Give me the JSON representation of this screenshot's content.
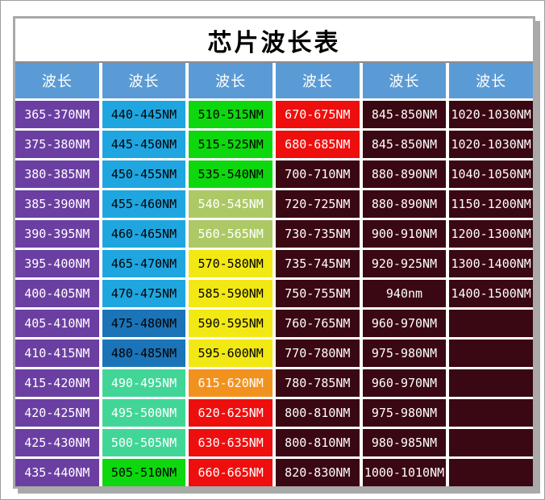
{
  "title": "芯片波长表",
  "header": {
    "labels": [
      "波长",
      "波长",
      "波长",
      "波长",
      "波长",
      "波长"
    ],
    "bg": "#5B9BD5",
    "fg": "#FFFFFF"
  },
  "palette": {
    "uv_purple": {
      "bg": "#6B3FA2",
      "fg": "#FFFFFF"
    },
    "cyan_blue": {
      "bg": "#1FA6E0",
      "fg": "#000000"
    },
    "medium_blue": {
      "bg": "#1B74B8",
      "fg": "#000000"
    },
    "seafoam": {
      "bg": "#41D697",
      "fg": "#FFFFFF"
    },
    "bright_green": {
      "bg": "#0DD80D",
      "fg": "#000000"
    },
    "yellow_green": {
      "bg": "#ADC965",
      "fg": "#FFFFFF"
    },
    "yellow": {
      "bg": "#F2E813",
      "fg": "#000000"
    },
    "orange": {
      "bg": "#F2921E",
      "fg": "#FFFFFF"
    },
    "red": {
      "bg": "#EE0E0E",
      "fg": "#FFFFFF"
    },
    "dark_maroon": {
      "bg": "#3A0812",
      "fg": "#FFFFFF"
    }
  },
  "table": {
    "rows": [
      {
        "cells": [
          {
            "text": "365-370NM",
            "color": "uv_purple"
          },
          {
            "text": "440-445NM",
            "color": "cyan_blue"
          },
          {
            "text": "510-515NM",
            "color": "bright_green"
          },
          {
            "text": "670-675NM",
            "color": "red"
          },
          {
            "text": "845-850NM",
            "color": "dark_maroon"
          },
          {
            "text": "1020-1030NM",
            "color": "dark_maroon"
          }
        ]
      },
      {
        "cells": [
          {
            "text": "375-380NM",
            "color": "uv_purple"
          },
          {
            "text": "445-450NM",
            "color": "cyan_blue"
          },
          {
            "text": "515-525NM",
            "color": "bright_green"
          },
          {
            "text": "680-685NM",
            "color": "red"
          },
          {
            "text": "845-850NM",
            "color": "dark_maroon"
          },
          {
            "text": "1020-1030NM",
            "color": "dark_maroon"
          }
        ]
      },
      {
        "cells": [
          {
            "text": "380-385NM",
            "color": "uv_purple"
          },
          {
            "text": "450-455NM",
            "color": "cyan_blue"
          },
          {
            "text": "535-540NM",
            "color": "bright_green"
          },
          {
            "text": "700-710NM",
            "color": "dark_maroon"
          },
          {
            "text": "880-890NM",
            "color": "dark_maroon"
          },
          {
            "text": "1040-1050NM",
            "color": "dark_maroon"
          }
        ]
      },
      {
        "cells": [
          {
            "text": "385-390NM",
            "color": "uv_purple"
          },
          {
            "text": "455-460NM",
            "color": "cyan_blue"
          },
          {
            "text": "540-545NM",
            "color": "yellow_green"
          },
          {
            "text": "720-725NM",
            "color": "dark_maroon"
          },
          {
            "text": "880-890NM",
            "color": "dark_maroon"
          },
          {
            "text": "1150-1200NM",
            "color": "dark_maroon"
          }
        ]
      },
      {
        "cells": [
          {
            "text": "390-395NM",
            "color": "uv_purple"
          },
          {
            "text": "460-465NM",
            "color": "cyan_blue"
          },
          {
            "text": "560-565NM",
            "color": "yellow_green"
          },
          {
            "text": "730-735NM",
            "color": "dark_maroon"
          },
          {
            "text": "900-910NM",
            "color": "dark_maroon"
          },
          {
            "text": "1200-1300NM",
            "color": "dark_maroon"
          }
        ]
      },
      {
        "cells": [
          {
            "text": "395-400NM",
            "color": "uv_purple"
          },
          {
            "text": "465-470NM",
            "color": "cyan_blue"
          },
          {
            "text": "570-580NM",
            "color": "yellow"
          },
          {
            "text": "735-745NM",
            "color": "dark_maroon"
          },
          {
            "text": "920-925NM",
            "color": "dark_maroon"
          },
          {
            "text": "1300-1400NM",
            "color": "dark_maroon"
          }
        ]
      },
      {
        "cells": [
          {
            "text": "400-405NM",
            "color": "uv_purple"
          },
          {
            "text": "470-475NM",
            "color": "cyan_blue"
          },
          {
            "text": "585-590NM",
            "color": "yellow"
          },
          {
            "text": "750-755NM",
            "color": "dark_maroon"
          },
          {
            "text": "940nm",
            "color": "dark_maroon"
          },
          {
            "text": "1400-1500NM",
            "color": "dark_maroon"
          }
        ]
      },
      {
        "cells": [
          {
            "text": "405-410NM",
            "color": "uv_purple"
          },
          {
            "text": "475-480NM",
            "color": "medium_blue"
          },
          {
            "text": "590-595NM",
            "color": "yellow"
          },
          {
            "text": "760-765NM",
            "color": "dark_maroon"
          },
          {
            "text": "960-970NM",
            "color": "dark_maroon"
          },
          {
            "text": "",
            "color": "dark_maroon"
          }
        ]
      },
      {
        "cells": [
          {
            "text": "410-415NM",
            "color": "uv_purple"
          },
          {
            "text": "480-485NM",
            "color": "medium_blue"
          },
          {
            "text": "595-600NM",
            "color": "yellow"
          },
          {
            "text": "770-780NM",
            "color": "dark_maroon"
          },
          {
            "text": "975-980NM",
            "color": "dark_maroon"
          },
          {
            "text": "",
            "color": "dark_maroon"
          }
        ]
      },
      {
        "cells": [
          {
            "text": "415-420NM",
            "color": "uv_purple"
          },
          {
            "text": "490-495NM",
            "color": "seafoam"
          },
          {
            "text": "615-620NM",
            "color": "orange"
          },
          {
            "text": "780-785NM",
            "color": "dark_maroon"
          },
          {
            "text": "960-970NM",
            "color": "dark_maroon"
          },
          {
            "text": "",
            "color": "dark_maroon"
          }
        ]
      },
      {
        "cells": [
          {
            "text": "420-425NM",
            "color": "uv_purple"
          },
          {
            "text": "495-500NM",
            "color": "seafoam"
          },
          {
            "text": "620-625NM",
            "color": "red"
          },
          {
            "text": "800-810NM",
            "color": "dark_maroon"
          },
          {
            "text": "975-980NM",
            "color": "dark_maroon"
          },
          {
            "text": "",
            "color": "dark_maroon"
          }
        ]
      },
      {
        "cells": [
          {
            "text": "425-430NM",
            "color": "uv_purple"
          },
          {
            "text": "500-505NM",
            "color": "seafoam"
          },
          {
            "text": "630-635NM",
            "color": "red"
          },
          {
            "text": "800-810NM",
            "color": "dark_maroon"
          },
          {
            "text": "980-985NM",
            "color": "dark_maroon"
          },
          {
            "text": "",
            "color": "dark_maroon"
          }
        ]
      },
      {
        "cells": [
          {
            "text": "435-440NM",
            "color": "uv_purple"
          },
          {
            "text": "505-510NM",
            "color": "bright_green"
          },
          {
            "text": "660-665NM",
            "color": "red"
          },
          {
            "text": "820-830NM",
            "color": "dark_maroon"
          },
          {
            "text": "1000-1010NM",
            "color": "dark_maroon"
          },
          {
            "text": "",
            "color": "dark_maroon"
          }
        ]
      }
    ]
  }
}
